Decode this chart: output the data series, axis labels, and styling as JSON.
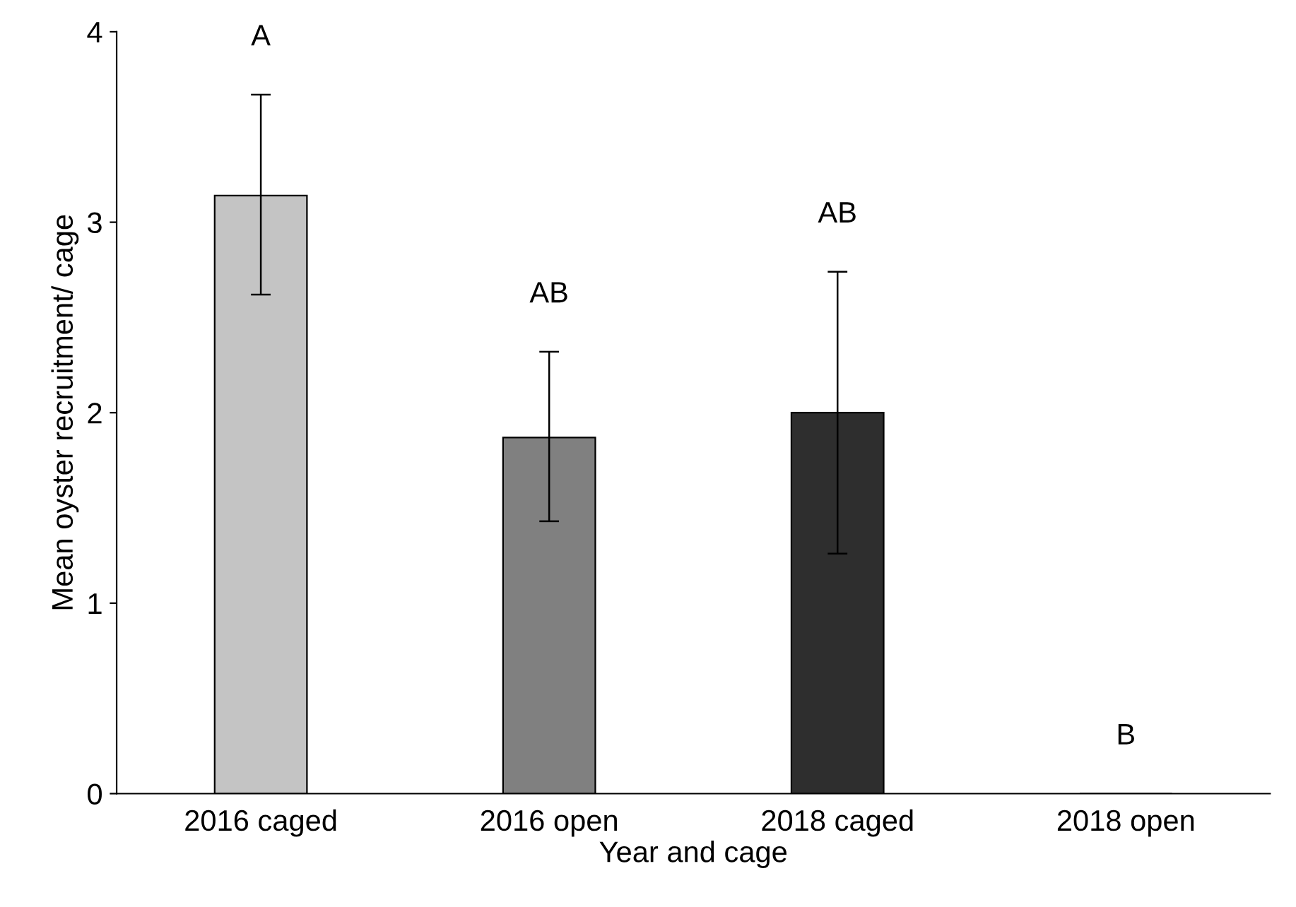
{
  "chart_data": {
    "type": "bar",
    "xlabel": "Year and cage",
    "ylabel": "Mean oyster recruitment/ cage",
    "categories": [
      "2016 caged",
      "2016 open",
      "2018 caged",
      "2018 open"
    ],
    "values": [
      3.14,
      1.87,
      2.0,
      0
    ],
    "errors": [
      [
        2.62,
        3.67
      ],
      [
        1.43,
        2.32
      ],
      [
        1.26,
        2.74
      ],
      null
    ],
    "colors": [
      "#c4c4c4",
      "#808080",
      "#2e2e2e",
      "#808080"
    ],
    "ylim": [
      0,
      4
    ],
    "yticks": [
      0,
      1,
      2,
      3,
      4
    ],
    "grid": false,
    "legend": false,
    "annotations": [
      "A",
      "AB",
      "AB",
      "B"
    ]
  }
}
